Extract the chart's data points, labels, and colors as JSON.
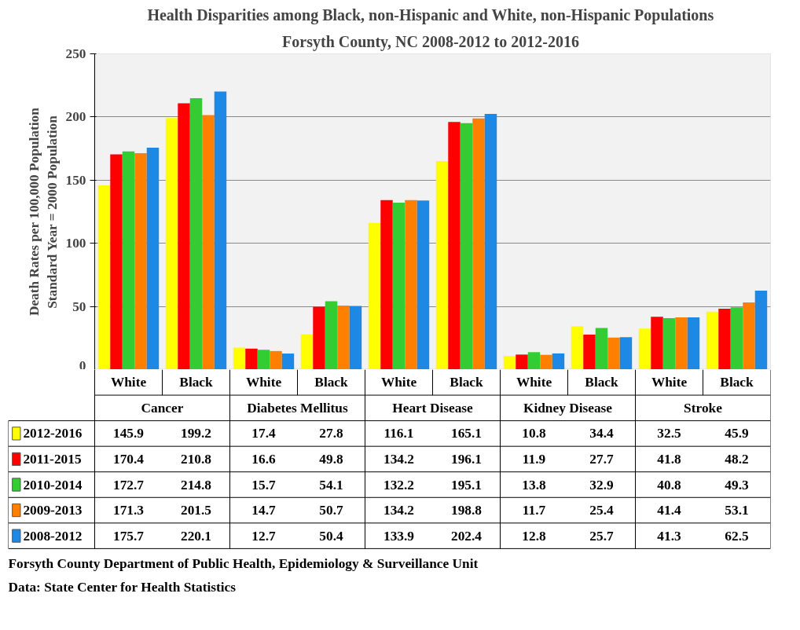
{
  "chart_data": {
    "type": "bar",
    "title": "Health Disparities among Black, non-Hispanic and White, non-Hispanic  Populations",
    "subtitle": "Forsyth County, NC  2008-2012 to 2012-2016",
    "ylabel": "Death Rates per 100,000 Population\nStandard Year = 2000 Population",
    "categories": [
      "White",
      "Black",
      "White",
      "Black",
      "White",
      "Black",
      "White",
      "Black",
      "White",
      "Black"
    ],
    "series": [
      {
        "name": "2012-2016",
        "color": "#ffff00",
        "values": [
          145.9,
          199.2,
          17.4,
          27.8,
          116.1,
          165.1,
          10.8,
          34.4,
          32.5,
          45.9
        ]
      },
      {
        "name": "2011-2015",
        "color": "#ff0000",
        "values": [
          170.4,
          210.8,
          16.6,
          49.8,
          134.2,
          196.1,
          11.9,
          27.7,
          41.8,
          48.2
        ]
      },
      {
        "name": "2010-2014",
        "color": "#33cc33",
        "values": [
          172.7,
          214.8,
          15.7,
          54.1,
          132.2,
          195.1,
          13.8,
          32.9,
          40.8,
          49.3
        ]
      },
      {
        "name": "2009-2013",
        "color": "#ff8000",
        "values": [
          171.3,
          201.5,
          14.7,
          50.7,
          134.2,
          198.8,
          11.7,
          25.4,
          41.4,
          53.1
        ]
      },
      {
        "name": "2008-2012",
        "color": "#1e88e5",
        "values": [
          175.7,
          220.1,
          12.7,
          50.4,
          133.9,
          202.4,
          12.8,
          25.7,
          41.3,
          62.5
        ]
      }
    ],
    "ylim": [
      0,
      250
    ],
    "yticks": [
      0,
      50,
      100,
      150,
      200,
      250
    ],
    "grid": "y",
    "legend": "bottom",
    "data_labels": true,
    "annotations": [
      "Cancer",
      "Diabetes Mellitus",
      "Heart Disease",
      "Kidney Disease",
      "Stroke",
      "Forsyth County Department of Public Health, Epidemiology & Surveillance Unit",
      "Data: State Center for Health Statistics"
    ]
  }
}
